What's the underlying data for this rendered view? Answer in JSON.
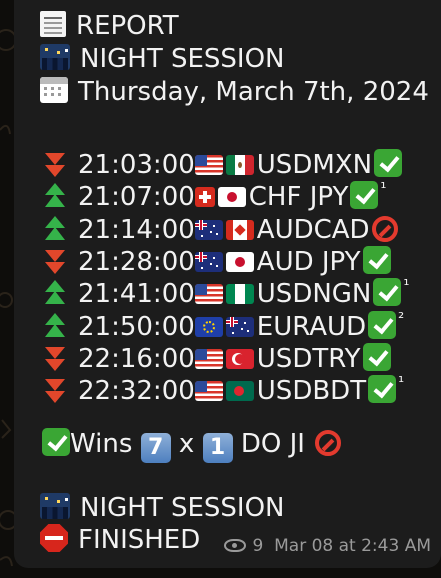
{
  "header": {
    "report": "REPORT",
    "session": "NIGHT SESSION",
    "date": "Thursday,  March 7th,  2024"
  },
  "trades": [
    {
      "time": "21:03:00",
      "pair": "USDMXN",
      "direction": "down",
      "flags": [
        "us",
        "mx"
      ],
      "result": "check",
      "mark": ""
    },
    {
      "time": "21:07:00",
      "pair": "CHF JPY",
      "direction": "up",
      "flags": [
        "ch",
        "jp"
      ],
      "result": "check",
      "mark": "¹"
    },
    {
      "time": "21:14:00",
      "pair": "AUDCAD",
      "direction": "up",
      "flags": [
        "au",
        "ca"
      ],
      "result": "loss",
      "mark": ""
    },
    {
      "time": "21:28:00",
      "pair": "AUD JPY",
      "direction": "down",
      "flags": [
        "au",
        "jp"
      ],
      "result": "check",
      "mark": ""
    },
    {
      "time": "21:41:00",
      "pair": "USDNGN",
      "direction": "up",
      "flags": [
        "us",
        "ng"
      ],
      "result": "check",
      "mark": "¹"
    },
    {
      "time": "21:50:00",
      "pair": "EURAUD",
      "direction": "up",
      "flags": [
        "eu",
        "au"
      ],
      "result": "check",
      "mark": "²"
    },
    {
      "time": "22:16:00",
      "pair": "USDTRY",
      "direction": "down",
      "flags": [
        "us",
        "tr"
      ],
      "result": "check",
      "mark": ""
    },
    {
      "time": "22:32:00",
      "pair": "USDBDT",
      "direction": "down",
      "flags": [
        "us",
        "bd"
      ],
      "result": "check",
      "mark": "¹"
    }
  ],
  "summary": {
    "wins_label": "Wins",
    "wins_count": "7",
    "x": "x",
    "loss_count": "1",
    "do_ji": "DO  JI"
  },
  "footer": {
    "session": "NIGHT SESSION",
    "finished": "FINISHED"
  },
  "meta": {
    "views": "9",
    "timestamp": "Mar 08 at 2:43 AM"
  },
  "colors": {
    "bubble": "#1c1c1c",
    "text": "#f2f2f2",
    "up": "#35b34a",
    "down": "#e2472b",
    "win": "#3aa634",
    "loss": "#e33a2e"
  }
}
